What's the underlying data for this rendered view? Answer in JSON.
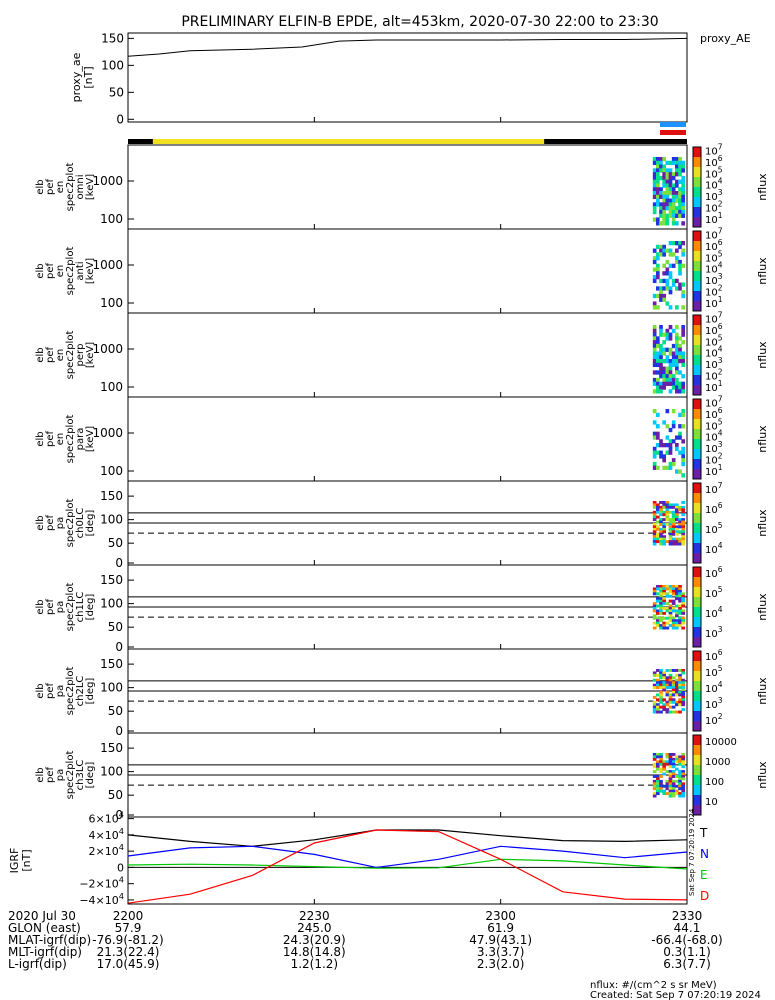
{
  "title": "PRELIMINARY ELFIN-B EPDE, alt=453km, 2020-07-30 22:00 to 23:30",
  "colors": {
    "spec": [
      "#6b1fa6",
      "#2233e0",
      "#00c8ff",
      "#00e08a",
      "#7de03a",
      "#e8e020",
      "#ff8c00",
      "#e01010"
    ]
  },
  "chart_data": [
    {
      "type": "line",
      "panel": "proxy_ae",
      "ylabel": [
        "proxy_ae",
        "[nT]"
      ],
      "legend": "proxy_AE",
      "yticks": [
        "150",
        "100",
        "50",
        "0"
      ],
      "ylim": [
        -5,
        160
      ],
      "x": [
        0,
        5,
        10,
        20,
        28,
        34,
        40,
        50,
        60,
        70,
        80,
        90
      ],
      "values": [
        117,
        121,
        127,
        130,
        134,
        145,
        147,
        147,
        147,
        148,
        148,
        150
      ]
    },
    {
      "type": "heatmap",
      "panel": "omni",
      "ylabel": [
        "elb",
        "pef",
        "en",
        "spec2plot",
        "omni",
        "[keV]"
      ],
      "yticks": [
        "1000",
        "100"
      ],
      "colorbar": {
        "label": "nflux",
        "ticks": [
          "10^7",
          "10^6",
          "10^5",
          "10^4",
          "10^3",
          "10^2",
          "10^1"
        ]
      }
    },
    {
      "type": "heatmap",
      "panel": "anti",
      "ylabel": [
        "elb",
        "pef",
        "en",
        "spec2plot",
        "anti",
        "[keV]"
      ],
      "yticks": [
        "1000",
        "100"
      ],
      "colorbar": {
        "label": "nflux",
        "ticks": [
          "10^7",
          "10^6",
          "10^5",
          "10^4",
          "10^3",
          "10^2",
          "10^1"
        ]
      }
    },
    {
      "type": "heatmap",
      "panel": "perp",
      "ylabel": [
        "elb",
        "pef",
        "en",
        "spec2plot",
        "perp",
        "[keV]"
      ],
      "yticks": [
        "1000",
        "100"
      ],
      "colorbar": {
        "label": "nflux",
        "ticks": [
          "10^7",
          "10^6",
          "10^5",
          "10^4",
          "10^3",
          "10^2",
          "10^1"
        ]
      }
    },
    {
      "type": "heatmap",
      "panel": "para",
      "ylabel": [
        "elb",
        "pef",
        "en",
        "spec2plot",
        "para",
        "[keV]"
      ],
      "yticks": [
        "1000",
        "100"
      ],
      "colorbar": {
        "label": "nflux",
        "ticks": [
          "10^7",
          "10^6",
          "10^5",
          "10^4",
          "10^3",
          "10^2",
          "10^1"
        ]
      }
    },
    {
      "type": "heatmap",
      "panel": "ch0LC",
      "ylabel": [
        "elb",
        "pef",
        "pa",
        "spec2plot",
        "ch0LC",
        "[deg]"
      ],
      "yticks": [
        "150",
        "100",
        "50",
        "0"
      ],
      "colorbar": {
        "label": "nflux",
        "ticks": [
          "10^7",
          "10^6",
          "10^5",
          "10^4"
        ]
      }
    },
    {
      "type": "heatmap",
      "panel": "ch1LC",
      "ylabel": [
        "elb",
        "pef",
        "pa",
        "spec2plot",
        "ch1LC",
        "[deg]"
      ],
      "yticks": [
        "150",
        "100",
        "50",
        "0"
      ],
      "colorbar": {
        "label": "nflux",
        "ticks": [
          "10^6",
          "10^5",
          "10^4",
          "10^3"
        ]
      }
    },
    {
      "type": "heatmap",
      "panel": "ch2LC",
      "ylabel": [
        "elb",
        "pef",
        "pa",
        "spec2plot",
        "ch2LC",
        "[deg]"
      ],
      "yticks": [
        "150",
        "100",
        "50",
        "0"
      ],
      "colorbar": {
        "label": "nflux",
        "ticks": [
          "10^6",
          "10^5",
          "10^4",
          "10^3",
          "10^2"
        ]
      }
    },
    {
      "type": "heatmap",
      "panel": "ch3LC",
      "ylabel": [
        "elb",
        "pef",
        "pa",
        "spec2plot",
        "ch3LC",
        "[deg]"
      ],
      "yticks": [
        "150",
        "100",
        "50",
        "0"
      ],
      "colorbar": {
        "label": "nflux",
        "ticks": [
          "10000",
          "1000",
          "100",
          "10"
        ]
      }
    },
    {
      "type": "line",
      "panel": "IGRF",
      "ylabel": [
        "IGRF",
        "[nT]"
      ],
      "yticks": [
        "6×10^4",
        "4×10^4",
        "2×10^4",
        "0",
        "−2×10^4",
        "−4×10^4"
      ],
      "ylim": [
        -45000,
        62000
      ],
      "x": [
        0,
        10,
        20,
        30,
        40,
        50,
        60,
        70,
        80,
        90
      ],
      "series": [
        {
          "name": "T",
          "color": "#000000",
          "values": [
            40000,
            32000,
            26000,
            34000,
            46000,
            46000,
            39000,
            33000,
            32000,
            34000
          ]
        },
        {
          "name": "N",
          "color": "#0000ff",
          "values": [
            14000,
            24000,
            26000,
            16000,
            0,
            10000,
            26000,
            20000,
            12000,
            19000
          ]
        },
        {
          "name": "E",
          "color": "#00c800",
          "values": [
            3000,
            4000,
            3000,
            1000,
            -1000,
            -500,
            10000,
            8000,
            3000,
            -2000
          ]
        },
        {
          "name": "D",
          "color": "#ff0000",
          "values": [
            -44000,
            -33000,
            -10000,
            30000,
            46000,
            44000,
            10000,
            -30000,
            -39000,
            -40000
          ]
        }
      ]
    }
  ],
  "ephemeris": {
    "rows": [
      [
        "2020 Jul 30",
        "2200",
        "2230",
        "2300",
        "2330"
      ],
      [
        "GLON (east)",
        "57.9",
        "245.0",
        "61.9",
        "44.1"
      ],
      [
        "MLAT-igrf(dip)",
        "-76.9(-81.2)",
        "24.3(20.9)",
        "47.9(43.1)",
        "-66.4(-68.0)"
      ],
      [
        "MLT-igrf(dip)",
        "21.3(22.4)",
        "14.8(14.8)",
        "3.3(3.7)",
        "0.3(1.1)"
      ],
      [
        "L-igrf(dip)",
        "17.0(45.9)",
        "1.2(1.2)",
        "2.3(2.0)",
        "6.3(7.7)"
      ]
    ]
  },
  "footer": {
    "units": "nflux: #/(cm^2 s sr MeV)",
    "created": "Created: Sat Sep  7 07:20:19 2024",
    "side_stamp": "Sat Sep  7 07:20:19 2024"
  }
}
